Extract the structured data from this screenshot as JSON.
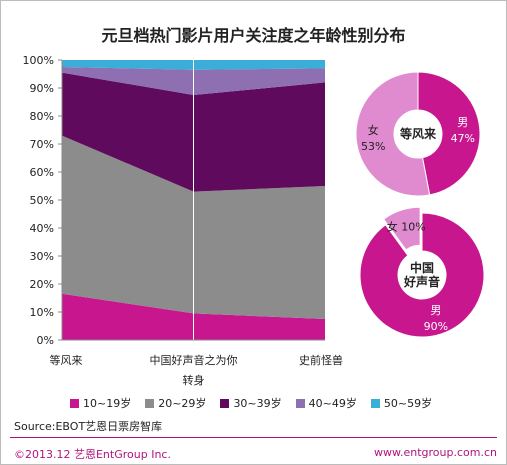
{
  "chart_data": [
    {
      "type": "area",
      "title": "元旦档热门影片用户关注度之年龄性别分布",
      "categories": [
        "等风来",
        "中国好声音之为你转身",
        "史前怪兽"
      ],
      "y_ticks": [
        "0%",
        "10%",
        "20%",
        "30%",
        "40%",
        "50%",
        "60%",
        "70%",
        "80%",
        "90%",
        "100%"
      ],
      "ylim": [
        0,
        100
      ],
      "stacked": true,
      "series": [
        {
          "name": "10~19岁",
          "color": "#c8168f",
          "values": [
            16.5,
            9.5,
            7.5
          ]
        },
        {
          "name": "20~29岁",
          "color": "#8c8c8c",
          "values": [
            56.5,
            43.5,
            47.5
          ]
        },
        {
          "name": "30~39岁",
          "color": "#5f0a5c",
          "values": [
            22.5,
            34.5,
            37
          ]
        },
        {
          "name": "40~49岁",
          "color": "#8e6fb1",
          "values": [
            2,
            9,
            5
          ]
        },
        {
          "name": "50~59岁",
          "color": "#3aaed8",
          "values": [
            2.5,
            3.5,
            3
          ]
        }
      ]
    },
    {
      "type": "pie",
      "center_label": "等风来",
      "slices": [
        {
          "name": "男",
          "value": 47,
          "label": "47%",
          "color": "#c8168f"
        },
        {
          "name": "女",
          "value": 53,
          "label": "53%",
          "color": "#e08ad0"
        }
      ]
    },
    {
      "type": "pie",
      "center_label": [
        "中国",
        "好声音"
      ],
      "slices": [
        {
          "name": "男",
          "value": 90,
          "label": "90%",
          "color": "#c8168f"
        },
        {
          "name": "女",
          "value": 10,
          "label": "10%",
          "color": "#e08ad0"
        }
      ]
    }
  ],
  "footer": {
    "source": "Source:EBOT艺恩日票房智库",
    "copyright": "©2013.12  艺恩EntGroup Inc.",
    "website": "www.entgroup.com.cn"
  }
}
